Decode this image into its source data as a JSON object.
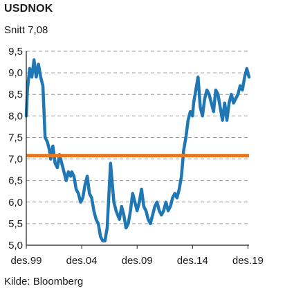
{
  "header": {
    "title": "USDNOK",
    "subtitle": "Snitt 7,08"
  },
  "footer": {
    "source": "Kilde: Bloomberg"
  },
  "colors": {
    "series": "#1f77b4",
    "average": "#e87722",
    "grid": "#999999",
    "axis": "#1a1a1a"
  },
  "chart_data": {
    "type": "line",
    "title": "USDNOK",
    "subtitle": "Snitt 7,08",
    "xlabel": "",
    "ylabel": "",
    "ylim": [
      5.0,
      9.5
    ],
    "xlim": [
      1999.9,
      2020.0
    ],
    "y_ticks": [
      "9,5",
      "9,0",
      "8,5",
      "8,0",
      "7,5",
      "7,0",
      "6,5",
      "6,0",
      "5,5",
      "5,0"
    ],
    "y_tick_values": [
      9.5,
      9.0,
      8.5,
      8.0,
      7.5,
      7.0,
      6.5,
      6.0,
      5.5,
      5.0
    ],
    "x_ticks": [
      "des.99",
      "des.04",
      "des.09",
      "des.14",
      "des.19"
    ],
    "x_tick_values": [
      1999.9,
      2004.9,
      2009.9,
      2014.9,
      2019.9
    ],
    "grid": "horizontal dashed",
    "reference_line": {
      "name": "Snitt",
      "value": 7.08
    },
    "series": [
      {
        "x": [
          1999.9,
          2000.0,
          2000.2,
          2000.4,
          2000.6,
          2000.8,
          2001.0,
          2001.2,
          2001.4,
          2001.6,
          2001.8,
          2002.0,
          2002.1,
          2002.3,
          2002.5,
          2002.7,
          2002.9,
          2003.0,
          2003.1,
          2003.3,
          2003.5,
          2003.7,
          2003.9,
          2004.0,
          2004.2,
          2004.4,
          2004.6,
          2004.8,
          2005.0,
          2005.2,
          2005.4,
          2005.6,
          2005.8,
          2006.0,
          2006.2,
          2006.4,
          2006.6,
          2006.8,
          2007.0,
          2007.2,
          2007.5,
          2007.8,
          2008.0,
          2008.3,
          2008.5,
          2008.7,
          2008.9,
          2009.1,
          2009.3,
          2009.5,
          2009.7,
          2009.9,
          2010.1,
          2010.3,
          2010.5,
          2010.7,
          2010.9,
          2011.1,
          2011.3,
          2011.5,
          2011.7,
          2011.9,
          2012.1,
          2012.3,
          2012.5,
          2012.7,
          2012.9,
          2013.1,
          2013.3,
          2013.5,
          2013.7,
          2013.9,
          2014.1,
          2014.3,
          2014.5,
          2014.7,
          2014.9,
          2015.0,
          2015.2,
          2015.4,
          2015.6,
          2015.8,
          2016.0,
          2016.2,
          2016.4,
          2016.6,
          2016.8,
          2017.0,
          2017.2,
          2017.4,
          2017.6,
          2017.8,
          2018.0,
          2018.2,
          2018.4,
          2018.6,
          2018.8,
          2019.0,
          2019.2,
          2019.4,
          2019.6,
          2019.8,
          2020.0
        ],
        "values": [
          8.0,
          8.6,
          9.1,
          8.9,
          9.3,
          8.9,
          9.2,
          8.9,
          8.7,
          7.5,
          7.4,
          7.2,
          7.0,
          7.3,
          6.9,
          6.8,
          7.1,
          7.0,
          6.9,
          6.7,
          6.5,
          6.7,
          6.6,
          6.7,
          6.6,
          6.3,
          6.2,
          6.0,
          6.1,
          6.4,
          6.6,
          6.2,
          6.1,
          5.8,
          5.6,
          5.5,
          5.2,
          5.1,
          5.1,
          5.4,
          6.9,
          6.0,
          5.8,
          5.6,
          5.9,
          5.7,
          5.4,
          5.5,
          5.8,
          6.2,
          6.0,
          5.8,
          6.0,
          6.3,
          5.9,
          5.8,
          5.6,
          5.5,
          5.7,
          5.9,
          6.0,
          5.8,
          5.7,
          5.8,
          6.0,
          5.8,
          5.9,
          6.1,
          6.2,
          6.1,
          6.3,
          6.6,
          7.2,
          7.5,
          7.9,
          8.1,
          8.0,
          8.3,
          8.6,
          8.9,
          8.2,
          8.0,
          8.4,
          8.6,
          8.5,
          8.3,
          8.1,
          8.6,
          8.5,
          8.2,
          7.9,
          8.3,
          7.9,
          8.3,
          8.5,
          8.3,
          8.4,
          8.5,
          8.7,
          8.6,
          8.9,
          9.1,
          8.9
        ]
      }
    ]
  }
}
